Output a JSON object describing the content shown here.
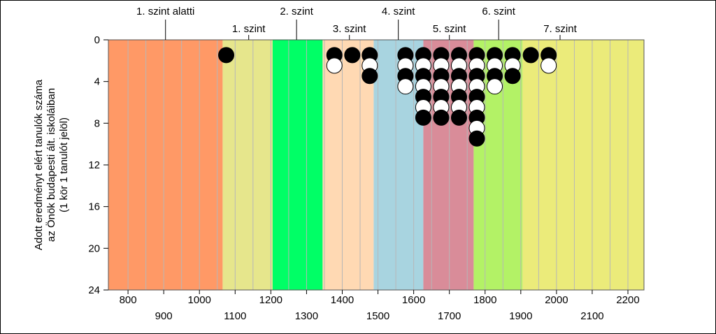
{
  "chart_data": {
    "type": "scatter",
    "title": "",
    "ylabel_lines": [
      "Adott eredményt elért tanulók száma",
      "az Önök budapesti ált. iskoláiban",
      "(1 kör 1 tanulót jelöl)"
    ],
    "xlim": [
      745,
      2245
    ],
    "ylim": [
      24,
      0
    ],
    "y_ticks": [
      0,
      4,
      8,
      12,
      16,
      20,
      24
    ],
    "x_ticks_row1": [
      800,
      1000,
      1200,
      1400,
      1600,
      1800,
      2000,
      2200
    ],
    "x_ticks_row2": [
      900,
      1100,
      1300,
      1500,
      1700,
      1900,
      2100
    ],
    "x_ticks_row1_labels": [
      "800",
      "1000",
      "1200",
      "1400",
      "1600",
      "1800",
      "2000",
      "2200"
    ],
    "x_ticks_row2_labels": [
      "900",
      "1100",
      "1300",
      "1500",
      "1700",
      "1900",
      "2100"
    ],
    "y_ticks_labels": [
      "0",
      "4",
      "8",
      "12",
      "16",
      "20",
      "24"
    ],
    "level_labels_top": [
      {
        "label": "1. szint alatti",
        "x": 905
      },
      {
        "label": "2. szint",
        "x": 1272
      },
      {
        "label": "4. szint",
        "x": 1557
      },
      {
        "label": "6. szint",
        "x": 1838
      }
    ],
    "level_labels_bottom": [
      {
        "label": "1. szint",
        "x": 1138
      },
      {
        "label": "3. szint",
        "x": 1420
      },
      {
        "label": "5. szint",
        "x": 1700
      },
      {
        "label": "7. szint",
        "x": 2010
      }
    ],
    "bands": [
      {
        "from": 745,
        "to": 1065,
        "color": "#ff9966"
      },
      {
        "from": 1065,
        "to": 1205,
        "color": "#e6e68c"
      },
      {
        "from": 1205,
        "to": 1345,
        "color": "#00ff66"
      },
      {
        "from": 1345,
        "to": 1488,
        "color": "#ffd9b3"
      },
      {
        "from": 1488,
        "to": 1627,
        "color": "#a8d4e0"
      },
      {
        "from": 1627,
        "to": 1768,
        "color": "#d98c99"
      },
      {
        "from": 1768,
        "to": 1905,
        "color": "#b3f266"
      },
      {
        "from": 1905,
        "to": 2245,
        "color": "#ebeb7a"
      }
    ],
    "minor_gridlines_step": 50,
    "series": [
      {
        "x": 1075,
        "y": 1,
        "fill": "black"
      },
      {
        "x": 1378,
        "y": 1,
        "fill": "black"
      },
      {
        "x": 1378,
        "y": 2,
        "fill": "white"
      },
      {
        "x": 1428,
        "y": 1,
        "fill": "black"
      },
      {
        "x": 1477,
        "y": 1,
        "fill": "black"
      },
      {
        "x": 1477,
        "y": 2,
        "fill": "white"
      },
      {
        "x": 1477,
        "y": 3,
        "fill": "black"
      },
      {
        "x": 1577,
        "y": 1,
        "fill": "black"
      },
      {
        "x": 1577,
        "y": 2,
        "fill": "white"
      },
      {
        "x": 1577,
        "y": 3,
        "fill": "black"
      },
      {
        "x": 1577,
        "y": 4,
        "fill": "white"
      },
      {
        "x": 1627,
        "y": 1,
        "fill": "black"
      },
      {
        "x": 1627,
        "y": 2,
        "fill": "white"
      },
      {
        "x": 1627,
        "y": 3,
        "fill": "black"
      },
      {
        "x": 1627,
        "y": 4,
        "fill": "white"
      },
      {
        "x": 1627,
        "y": 5,
        "fill": "black"
      },
      {
        "x": 1627,
        "y": 6,
        "fill": "white"
      },
      {
        "x": 1627,
        "y": 7,
        "fill": "black"
      },
      {
        "x": 1677,
        "y": 1,
        "fill": "black"
      },
      {
        "x": 1677,
        "y": 2,
        "fill": "white"
      },
      {
        "x": 1677,
        "y": 3,
        "fill": "black"
      },
      {
        "x": 1677,
        "y": 4,
        "fill": "white"
      },
      {
        "x": 1677,
        "y": 5,
        "fill": "black"
      },
      {
        "x": 1677,
        "y": 6,
        "fill": "white"
      },
      {
        "x": 1677,
        "y": 7,
        "fill": "black"
      },
      {
        "x": 1727,
        "y": 1,
        "fill": "black"
      },
      {
        "x": 1727,
        "y": 2,
        "fill": "white"
      },
      {
        "x": 1727,
        "y": 3,
        "fill": "black"
      },
      {
        "x": 1727,
        "y": 4,
        "fill": "white"
      },
      {
        "x": 1727,
        "y": 5,
        "fill": "black"
      },
      {
        "x": 1727,
        "y": 6,
        "fill": "white"
      },
      {
        "x": 1727,
        "y": 7,
        "fill": "black"
      },
      {
        "x": 1777,
        "y": 1,
        "fill": "black"
      },
      {
        "x": 1777,
        "y": 2,
        "fill": "white"
      },
      {
        "x": 1777,
        "y": 3,
        "fill": "black"
      },
      {
        "x": 1777,
        "y": 4,
        "fill": "white"
      },
      {
        "x": 1777,
        "y": 5,
        "fill": "black"
      },
      {
        "x": 1777,
        "y": 6,
        "fill": "white"
      },
      {
        "x": 1777,
        "y": 7,
        "fill": "black"
      },
      {
        "x": 1777,
        "y": 8,
        "fill": "white"
      },
      {
        "x": 1777,
        "y": 9,
        "fill": "black"
      },
      {
        "x": 1827,
        "y": 1,
        "fill": "black"
      },
      {
        "x": 1827,
        "y": 2,
        "fill": "white"
      },
      {
        "x": 1827,
        "y": 3,
        "fill": "black"
      },
      {
        "x": 1827,
        "y": 4,
        "fill": "white"
      },
      {
        "x": 1877,
        "y": 1,
        "fill": "black"
      },
      {
        "x": 1877,
        "y": 2,
        "fill": "white"
      },
      {
        "x": 1877,
        "y": 3,
        "fill": "black"
      },
      {
        "x": 1928,
        "y": 1,
        "fill": "black"
      },
      {
        "x": 1978,
        "y": 1,
        "fill": "black"
      },
      {
        "x": 1978,
        "y": 2,
        "fill": "white"
      }
    ]
  }
}
